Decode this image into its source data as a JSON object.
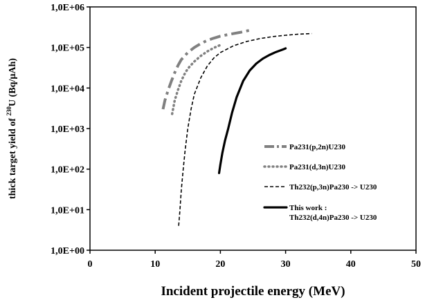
{
  "chart_data": {
    "type": "line",
    "title": "",
    "xlabel": "Incident projectile energy (MeV)",
    "ylabel": {
      "prefix": "thick target yield of ",
      "superscript": "230",
      "suffix": "U  (Bq/µAh)"
    },
    "xlim": [
      0,
      50
    ],
    "ylim": [
      1,
      1000000
    ],
    "y_scale": "log",
    "grid": false,
    "legend_placement": "bottom-right",
    "x_ticks": [
      {
        "value": 0,
        "label": "0"
      },
      {
        "value": 10,
        "label": "10"
      },
      {
        "value": 20,
        "label": "20"
      },
      {
        "value": 30,
        "label": "30"
      },
      {
        "value": 40,
        "label": "40"
      },
      {
        "value": 50,
        "label": "50"
      }
    ],
    "y_ticks": [
      {
        "value": 1,
        "label": "1,0E+00"
      },
      {
        "value": 10,
        "label": "1,0E+01"
      },
      {
        "value": 100,
        "label": "1,0E+02"
      },
      {
        "value": 1000,
        "label": "1,0E+03"
      },
      {
        "value": 10000,
        "label": "1,0E+04"
      },
      {
        "value": 100000,
        "label": "1,0E+05"
      },
      {
        "value": 1000000,
        "label": "1,0E+06"
      }
    ],
    "series": [
      {
        "name": "Pa231(p,2n)U230",
        "label_lines": [
          "Pa231(p,2n)U230"
        ],
        "color": "#808080",
        "style": "dashdot",
        "points": [
          [
            11.2,
            3000
          ],
          [
            11.5,
            5000
          ],
          [
            12,
            9000
          ],
          [
            12.5,
            15000
          ],
          [
            13,
            24000
          ],
          [
            13.5,
            36000
          ],
          [
            14,
            50000
          ],
          [
            15,
            75000
          ],
          [
            16,
            100000
          ],
          [
            17,
            125000
          ],
          [
            18,
            150000
          ],
          [
            19,
            170000
          ],
          [
            20,
            190000
          ],
          [
            21,
            205000
          ],
          [
            22,
            220000
          ],
          [
            23,
            235000
          ],
          [
            24,
            255000
          ],
          [
            25,
            275000
          ]
        ]
      },
      {
        "name": "Pa231(d,3n)U230",
        "label_lines": [
          "Pa231(d,3n)U230"
        ],
        "color": "#808080",
        "style": "dotted",
        "points": [
          [
            12.6,
            2300
          ],
          [
            13,
            5000
          ],
          [
            13.5,
            9000
          ],
          [
            14,
            15000
          ],
          [
            14.5,
            22000
          ],
          [
            15,
            30000
          ],
          [
            16,
            45000
          ],
          [
            17,
            62000
          ],
          [
            18,
            80000
          ],
          [
            19,
            98000
          ],
          [
            20,
            115000
          ]
        ]
      },
      {
        "name": "Th232(p,3n)Pa230 -> U230",
        "label_lines": [
          "Th232(p,3n)Pa230 -> U230"
        ],
        "color": "#000000",
        "style": "dashed",
        "points": [
          [
            13.6,
            4
          ],
          [
            13.8,
            10
          ],
          [
            14,
            30
          ],
          [
            14.3,
            100
          ],
          [
            14.6,
            300
          ],
          [
            15,
            1000
          ],
          [
            15.5,
            3000
          ],
          [
            16,
            7000
          ],
          [
            17,
            18000
          ],
          [
            18,
            35000
          ],
          [
            19,
            55000
          ],
          [
            20,
            75000
          ],
          [
            22,
            110000
          ],
          [
            24,
            140000
          ],
          [
            26,
            165000
          ],
          [
            28,
            185000
          ],
          [
            30,
            200000
          ],
          [
            32,
            213000
          ],
          [
            34,
            220000
          ]
        ]
      },
      {
        "name": "This work : Th232(d,4n)Pa230 -> U230",
        "label_lines": [
          "This work :",
          "Th232(d,4n)Pa230 -> U230"
        ],
        "color": "#000000",
        "style": "solid",
        "points": [
          [
            19.8,
            80
          ],
          [
            20,
            130
          ],
          [
            20.3,
            250
          ],
          [
            20.7,
            500
          ],
          [
            21.2,
            1000
          ],
          [
            21.8,
            2500
          ],
          [
            22.5,
            6000
          ],
          [
            23.5,
            15000
          ],
          [
            24.5,
            27000
          ],
          [
            25.5,
            40000
          ],
          [
            26.5,
            53000
          ],
          [
            27.5,
            65000
          ],
          [
            28.5,
            77000
          ],
          [
            29.5,
            88000
          ],
          [
            30,
            95000
          ]
        ]
      }
    ]
  }
}
